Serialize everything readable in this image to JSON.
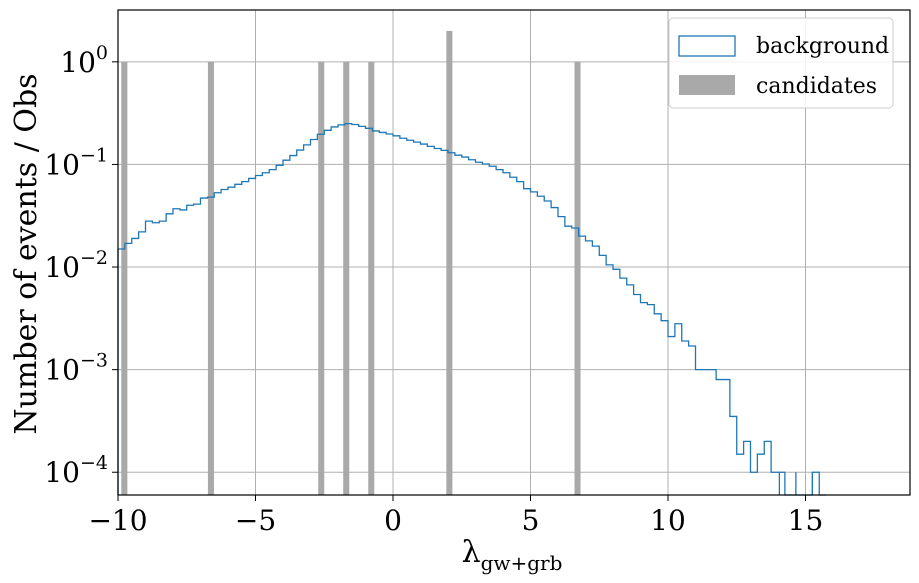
{
  "chart_data": {
    "type": "bar",
    "xlabel": "λ",
    "xlabel_sub": "gw+grb",
    "ylabel": "Number of events / Obs",
    "xlim": [
      -10,
      18.8
    ],
    "ylim": [
      6e-05,
      3.2
    ],
    "yscale": "log",
    "grid": true,
    "legend_position": "top-right",
    "x_ticks": [
      -10,
      -5,
      0,
      5,
      10,
      15
    ],
    "x_tick_labels": [
      "−10",
      "−5",
      "0",
      "5",
      "10",
      "15"
    ],
    "y_ticks": [
      {
        "value": 1,
        "base": "10",
        "exp": "0"
      },
      {
        "value": 0.1,
        "base": "10",
        "exp": "−1"
      },
      {
        "value": 0.01,
        "base": "10",
        "exp": "−2"
      },
      {
        "value": 0.001,
        "base": "10",
        "exp": "−3"
      },
      {
        "value": 0.0001,
        "base": "10",
        "exp": "−4"
      }
    ],
    "series": [
      {
        "name": "background",
        "style": "step",
        "color": "#1f77b4",
        "bin_width": 0.25,
        "bins": [
          [
            -10.0,
            0.015
          ],
          [
            -9.75,
            0.017
          ],
          [
            -9.5,
            0.019
          ],
          [
            -9.25,
            0.022
          ],
          [
            -9.0,
            0.028
          ],
          [
            -8.75,
            0.027
          ],
          [
            -8.5,
            0.028
          ],
          [
            -8.25,
            0.033
          ],
          [
            -8.0,
            0.037
          ],
          [
            -7.75,
            0.036
          ],
          [
            -7.5,
            0.04
          ],
          [
            -7.25,
            0.041
          ],
          [
            -7.0,
            0.047
          ],
          [
            -6.75,
            0.048
          ],
          [
            -6.5,
            0.053
          ],
          [
            -6.25,
            0.057
          ],
          [
            -6.0,
            0.06
          ],
          [
            -5.75,
            0.064
          ],
          [
            -5.5,
            0.068
          ],
          [
            -5.25,
            0.073
          ],
          [
            -5.0,
            0.078
          ],
          [
            -4.75,
            0.083
          ],
          [
            -4.5,
            0.089
          ],
          [
            -4.25,
            0.098
          ],
          [
            -4.0,
            0.11
          ],
          [
            -3.75,
            0.122
          ],
          [
            -3.5,
            0.138
          ],
          [
            -3.25,
            0.155
          ],
          [
            -3.0,
            0.175
          ],
          [
            -2.75,
            0.197
          ],
          [
            -2.5,
            0.215
          ],
          [
            -2.25,
            0.232
          ],
          [
            -2.0,
            0.243
          ],
          [
            -1.75,
            0.25
          ],
          [
            -1.5,
            0.245
          ],
          [
            -1.25,
            0.235
          ],
          [
            -1.0,
            0.225
          ],
          [
            -0.75,
            0.212
          ],
          [
            -0.5,
            0.205
          ],
          [
            -0.25,
            0.198
          ],
          [
            0.0,
            0.19
          ],
          [
            0.25,
            0.18
          ],
          [
            0.5,
            0.172
          ],
          [
            0.75,
            0.165
          ],
          [
            1.0,
            0.158
          ],
          [
            1.25,
            0.15
          ],
          [
            1.5,
            0.143
          ],
          [
            1.75,
            0.137
          ],
          [
            2.0,
            0.13
          ],
          [
            2.25,
            0.123
          ],
          [
            2.5,
            0.118
          ],
          [
            2.75,
            0.111
          ],
          [
            3.0,
            0.105
          ],
          [
            3.25,
            0.101
          ],
          [
            3.5,
            0.096
          ],
          [
            3.75,
            0.089
          ],
          [
            4.0,
            0.083
          ],
          [
            4.25,
            0.075
          ],
          [
            4.5,
            0.068
          ],
          [
            4.75,
            0.058
          ],
          [
            5.0,
            0.054
          ],
          [
            5.25,
            0.049
          ],
          [
            5.5,
            0.044
          ],
          [
            5.75,
            0.038
          ],
          [
            6.0,
            0.031
          ],
          [
            6.25,
            0.025
          ],
          [
            6.5,
            0.024
          ],
          [
            6.75,
            0.02
          ],
          [
            7.0,
            0.018
          ],
          [
            7.25,
            0.016
          ],
          [
            7.5,
            0.013
          ],
          [
            7.75,
            0.0105
          ],
          [
            8.0,
            0.0095
          ],
          [
            8.25,
            0.0078
          ],
          [
            8.5,
            0.0067
          ],
          [
            8.75,
            0.0054
          ],
          [
            9.0,
            0.0045
          ],
          [
            9.25,
            0.0043
          ],
          [
            9.5,
            0.0035
          ],
          [
            9.75,
            0.003
          ],
          [
            10.0,
            0.0021
          ],
          [
            10.25,
            0.0028
          ],
          [
            10.5,
            0.0019
          ],
          [
            10.75,
            0.0017
          ],
          [
            11.0,
            0.001
          ],
          [
            11.25,
            0.001
          ],
          [
            11.5,
            0.001
          ],
          [
            11.75,
            0.0008
          ],
          [
            12.0,
            0.0008
          ],
          [
            12.25,
            0.00035
          ],
          [
            12.5,
            0.00015
          ],
          [
            12.75,
            0.0002
          ],
          [
            13.0,
            0.0001
          ],
          [
            13.25,
            0.00015
          ],
          [
            13.5,
            0.0002
          ],
          [
            13.75,
            0.0001
          ],
          [
            14.0,
            0.0001
          ],
          [
            14.25,
            0
          ],
          [
            14.5,
            0
          ],
          [
            14.75,
            0
          ],
          [
            15.0,
            0
          ],
          [
            15.25,
            0.0001
          ],
          [
            15.5,
            0
          ]
        ],
        "impulses_at": [
          14.05,
          14.65,
          15.25
        ]
      },
      {
        "name": "candidates",
        "style": "bar",
        "color": "#a9a9a9",
        "bin_width": 0.22,
        "bars": [
          {
            "x": -9.77,
            "y": 1
          },
          {
            "x": -6.62,
            "y": 1
          },
          {
            "x": -2.61,
            "y": 1
          },
          {
            "x": -1.7,
            "y": 1
          },
          {
            "x": -0.79,
            "y": 1
          },
          {
            "x": 2.05,
            "y": 2
          },
          {
            "x": 6.71,
            "y": 1
          }
        ]
      }
    ]
  }
}
